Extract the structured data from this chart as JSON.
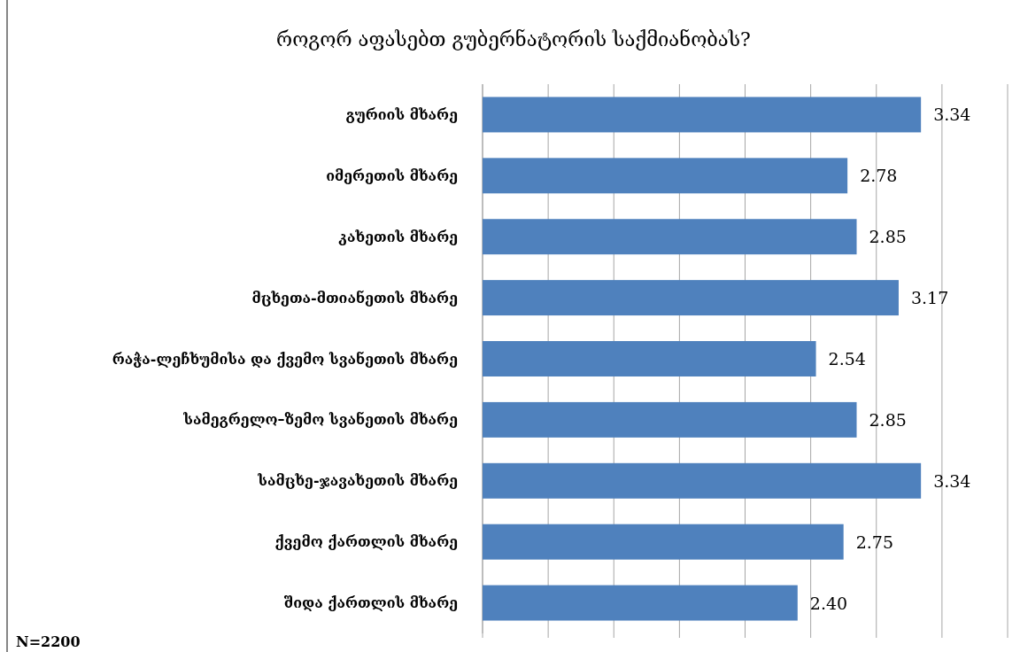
{
  "chart_data": {
    "type": "bar",
    "orientation": "horizontal",
    "title": "როგორ აფასებთ გუბერნატორის საქმიანობას?",
    "categories": [
      "გურიის მხარე",
      "იმერეთის მხარე",
      "კახეთის მხარე",
      "მცხეთა-მთიანეთის მხარე",
      "რაჭა-ლეჩხუმისა და ქვემო სვანეთის მხარე",
      "სამეგრელო–ზემო სვანეთის მხარე",
      "სამცხე-ჯავახეთის მხარე",
      "ქვემო ქართლის მხარე",
      "შიდა ქართლის მხარე"
    ],
    "values": [
      3.34,
      2.78,
      2.85,
      3.17,
      2.54,
      2.85,
      3.34,
      2.75,
      2.4
    ],
    "value_labels": [
      "3.34",
      "2.78",
      "2.85",
      "3.17",
      "2.54",
      "2.85",
      "3.34",
      "2.75",
      "2.40"
    ],
    "color": "#4f81bd",
    "xlim": [
      0,
      4
    ],
    "xticks": [
      {
        "value": 0,
        "label": null
      },
      {
        "value": 0.5,
        "label": null
      },
      {
        "value": 1,
        "label": null
      },
      {
        "value": 1.5,
        "label": null
      },
      {
        "value": 2,
        "label": null
      },
      {
        "value": 2.5,
        "label": null
      },
      {
        "value": 3,
        "label": null
      },
      {
        "value": 3.5,
        "label": null
      },
      {
        "value": 4,
        "label": null
      }
    ],
    "grid": "x",
    "tick_labels": "y",
    "annotations": [
      "N=2200"
    ]
  }
}
